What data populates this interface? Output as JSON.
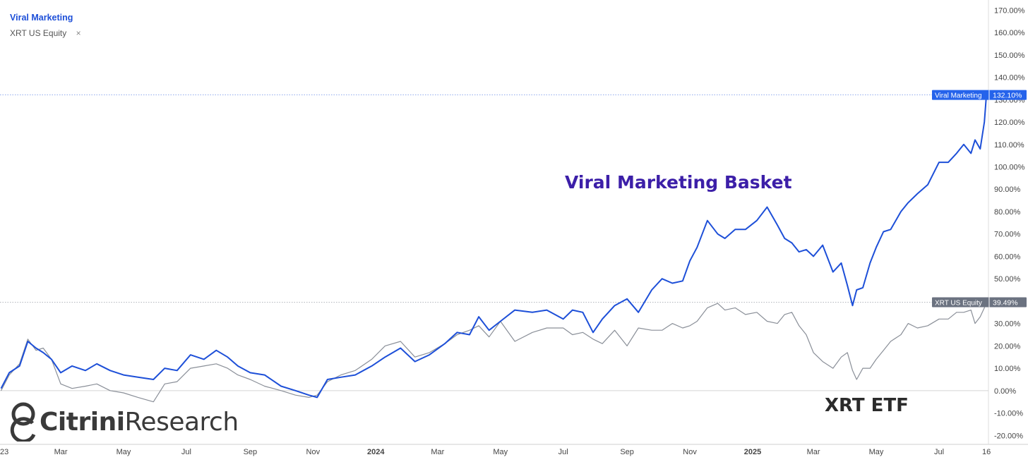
{
  "legend": {
    "series1": "Viral Marketing",
    "series2": "XRT US Equity",
    "close_glyph": "×"
  },
  "annotations": {
    "viral_marketing": "Viral Marketing Basket",
    "xrt": "XRT ETF"
  },
  "logo": {
    "word1": "Citrini",
    "word2": "Research",
    "icon": "citrini-logo-icon"
  },
  "colors": {
    "viral": "#1d4fd8",
    "xrt": "#8a8f98",
    "vm_annotation": "#3c1fa8"
  },
  "chart_data": {
    "type": "line",
    "xlim": [
      "2023-01-01",
      "2025-08-18"
    ],
    "ylim": [
      -0.24,
      1.72
    ],
    "y_tick_values": [
      -0.2,
      -0.1,
      0.0,
      0.1,
      0.2,
      0.3,
      0.4,
      0.5,
      0.6,
      0.7,
      0.8,
      0.9,
      1.0,
      1.1,
      1.2,
      1.3,
      1.4,
      1.5,
      1.6,
      1.7
    ],
    "y_tick_labels": [
      "-20.00%",
      "-10.00%",
      "0.00%",
      "10.00%",
      "20.00%",
      "30.00%",
      "40.00%",
      "50.00%",
      "60.00%",
      "70.00%",
      "80.00%",
      "90.00%",
      "100.00%",
      "110.00%",
      "120.00%",
      "130.00%",
      "140.00%",
      "150.00%",
      "160.00%",
      "170.00%"
    ],
    "x_ticks": [
      {
        "date": "2023-01-01",
        "label": "23",
        "bold": false
      },
      {
        "date": "2023-03-01",
        "label": "Mar",
        "bold": false
      },
      {
        "date": "2023-05-01",
        "label": "May",
        "bold": false
      },
      {
        "date": "2023-07-01",
        "label": "Jul",
        "bold": false
      },
      {
        "date": "2023-09-01",
        "label": "Sep",
        "bold": false
      },
      {
        "date": "2023-11-01",
        "label": "Nov",
        "bold": false
      },
      {
        "date": "2024-01-01",
        "label": "2024",
        "bold": true
      },
      {
        "date": "2024-03-01",
        "label": "Mar",
        "bold": false
      },
      {
        "date": "2024-05-01",
        "label": "May",
        "bold": false
      },
      {
        "date": "2024-07-01",
        "label": "Jul",
        "bold": false
      },
      {
        "date": "2024-09-01",
        "label": "Sep",
        "bold": false
      },
      {
        "date": "2024-11-01",
        "label": "Nov",
        "bold": false
      },
      {
        "date": "2025-01-01",
        "label": "2025",
        "bold": true
      },
      {
        "date": "2025-03-01",
        "label": "Mar",
        "bold": false
      },
      {
        "date": "2025-05-01",
        "label": "May",
        "bold": false
      },
      {
        "date": "2025-07-01",
        "label": "Jul",
        "bold": false
      },
      {
        "date": "2025-08-16",
        "label": "16",
        "bold": false
      }
    ],
    "series": [
      {
        "name": "Viral Marketing",
        "last_value_label": "132.10%",
        "last_value": 1.321,
        "x": [
          "2023-01-02",
          "2023-01-10",
          "2023-01-20",
          "2023-01-28",
          "2023-02-05",
          "2023-02-12",
          "2023-02-20",
          "2023-03-01",
          "2023-03-12",
          "2023-03-25",
          "2023-04-05",
          "2023-04-18",
          "2023-05-01",
          "2023-05-15",
          "2023-05-30",
          "2023-06-10",
          "2023-06-22",
          "2023-07-05",
          "2023-07-18",
          "2023-07-30",
          "2023-08-10",
          "2023-08-20",
          "2023-09-01",
          "2023-09-15",
          "2023-10-01",
          "2023-10-15",
          "2023-10-28",
          "2023-11-05",
          "2023-11-15",
          "2023-11-28",
          "2023-12-12",
          "2023-12-28",
          "2024-01-10",
          "2024-01-25",
          "2024-02-08",
          "2024-02-22",
          "2024-03-08",
          "2024-03-20",
          "2024-04-01",
          "2024-04-10",
          "2024-04-20",
          "2024-05-01",
          "2024-05-15",
          "2024-06-01",
          "2024-06-15",
          "2024-07-01",
          "2024-07-10",
          "2024-07-20",
          "2024-07-30",
          "2024-08-08",
          "2024-08-20",
          "2024-09-01",
          "2024-09-12",
          "2024-09-25",
          "2024-10-05",
          "2024-10-15",
          "2024-10-25",
          "2024-11-01",
          "2024-11-08",
          "2024-11-18",
          "2024-11-28",
          "2024-12-05",
          "2024-12-15",
          "2024-12-25",
          "2025-01-05",
          "2025-01-15",
          "2025-01-25",
          "2025-02-01",
          "2025-02-08",
          "2025-02-15",
          "2025-02-22",
          "2025-03-01",
          "2025-03-10",
          "2025-03-20",
          "2025-03-28",
          "2025-04-03",
          "2025-04-08",
          "2025-04-12",
          "2025-04-18",
          "2025-04-25",
          "2025-05-01",
          "2025-05-08",
          "2025-05-15",
          "2025-05-25",
          "2025-06-01",
          "2025-06-10",
          "2025-06-20",
          "2025-07-01",
          "2025-07-10",
          "2025-07-18",
          "2025-07-25",
          "2025-08-01",
          "2025-08-05",
          "2025-08-10",
          "2025-08-14",
          "2025-08-16"
        ],
        "y": [
          0.01,
          0.08,
          0.11,
          0.22,
          0.19,
          0.17,
          0.14,
          0.08,
          0.11,
          0.09,
          0.12,
          0.09,
          0.07,
          0.06,
          0.05,
          0.1,
          0.09,
          0.16,
          0.14,
          0.18,
          0.15,
          0.11,
          0.08,
          0.07,
          0.02,
          0.0,
          -0.02,
          -0.03,
          0.05,
          0.06,
          0.07,
          0.11,
          0.15,
          0.19,
          0.13,
          0.16,
          0.21,
          0.26,
          0.25,
          0.33,
          0.27,
          0.31,
          0.36,
          0.35,
          0.36,
          0.32,
          0.36,
          0.35,
          0.26,
          0.32,
          0.38,
          0.41,
          0.35,
          0.45,
          0.5,
          0.48,
          0.49,
          0.58,
          0.64,
          0.76,
          0.7,
          0.68,
          0.72,
          0.72,
          0.76,
          0.82,
          0.74,
          0.68,
          0.66,
          0.62,
          0.63,
          0.6,
          0.65,
          0.53,
          0.57,
          0.47,
          0.38,
          0.45,
          0.46,
          0.57,
          0.64,
          0.71,
          0.72,
          0.8,
          0.84,
          0.88,
          0.92,
          1.02,
          1.02,
          1.06,
          1.1,
          1.06,
          1.12,
          1.08,
          1.2,
          1.321
        ]
      },
      {
        "name": "XRT US Equity",
        "last_value_label": "39.49%",
        "last_value": 0.3949,
        "x": [
          "2023-01-02",
          "2023-01-10",
          "2023-01-20",
          "2023-01-28",
          "2023-02-05",
          "2023-02-12",
          "2023-02-20",
          "2023-03-01",
          "2023-03-12",
          "2023-03-25",
          "2023-04-05",
          "2023-04-18",
          "2023-05-01",
          "2023-05-15",
          "2023-05-30",
          "2023-06-10",
          "2023-06-22",
          "2023-07-05",
          "2023-07-18",
          "2023-07-30",
          "2023-08-10",
          "2023-08-20",
          "2023-09-01",
          "2023-09-15",
          "2023-10-01",
          "2023-10-15",
          "2023-10-28",
          "2023-11-05",
          "2023-11-15",
          "2023-11-28",
          "2023-12-12",
          "2023-12-28",
          "2024-01-10",
          "2024-01-25",
          "2024-02-08",
          "2024-02-22",
          "2024-03-08",
          "2024-03-20",
          "2024-04-01",
          "2024-04-10",
          "2024-04-20",
          "2024-05-01",
          "2024-05-15",
          "2024-06-01",
          "2024-06-15",
          "2024-07-01",
          "2024-07-10",
          "2024-07-20",
          "2024-07-30",
          "2024-08-08",
          "2024-08-20",
          "2024-09-01",
          "2024-09-12",
          "2024-09-25",
          "2024-10-05",
          "2024-10-15",
          "2024-10-25",
          "2024-11-01",
          "2024-11-08",
          "2024-11-18",
          "2024-11-28",
          "2024-12-05",
          "2024-12-15",
          "2024-12-25",
          "2025-01-05",
          "2025-01-15",
          "2025-01-25",
          "2025-02-01",
          "2025-02-08",
          "2025-02-15",
          "2025-02-22",
          "2025-03-01",
          "2025-03-10",
          "2025-03-20",
          "2025-03-28",
          "2025-04-03",
          "2025-04-08",
          "2025-04-12",
          "2025-04-18",
          "2025-04-25",
          "2025-05-01",
          "2025-05-08",
          "2025-05-15",
          "2025-05-25",
          "2025-06-01",
          "2025-06-10",
          "2025-06-20",
          "2025-07-01",
          "2025-07-10",
          "2025-07-18",
          "2025-07-25",
          "2025-08-01",
          "2025-08-05",
          "2025-08-10",
          "2025-08-14",
          "2025-08-16"
        ],
        "y": [
          0.0,
          0.07,
          0.12,
          0.23,
          0.18,
          0.19,
          0.14,
          0.03,
          0.01,
          0.02,
          0.03,
          0.0,
          -0.01,
          -0.03,
          -0.05,
          0.03,
          0.04,
          0.1,
          0.11,
          0.12,
          0.1,
          0.07,
          0.05,
          0.02,
          0.0,
          -0.02,
          -0.03,
          -0.02,
          0.04,
          0.07,
          0.09,
          0.14,
          0.2,
          0.22,
          0.15,
          0.17,
          0.21,
          0.25,
          0.27,
          0.29,
          0.24,
          0.31,
          0.22,
          0.26,
          0.28,
          0.28,
          0.25,
          0.26,
          0.23,
          0.21,
          0.27,
          0.2,
          0.28,
          0.27,
          0.27,
          0.3,
          0.28,
          0.29,
          0.31,
          0.37,
          0.39,
          0.36,
          0.37,
          0.34,
          0.35,
          0.31,
          0.3,
          0.34,
          0.35,
          0.29,
          0.25,
          0.17,
          0.13,
          0.1,
          0.15,
          0.17,
          0.09,
          0.05,
          0.1,
          0.1,
          0.14,
          0.18,
          0.22,
          0.25,
          0.3,
          0.28,
          0.29,
          0.32,
          0.32,
          0.35,
          0.35,
          0.36,
          0.3,
          0.33,
          0.37,
          0.3949
        ]
      }
    ],
    "reference_lines": [
      {
        "series": "Viral Marketing",
        "value": 1.321
      },
      {
        "series": "XRT US Equity",
        "value": 0.3949
      }
    ],
    "legend_position": "top-left",
    "grid": false
  }
}
